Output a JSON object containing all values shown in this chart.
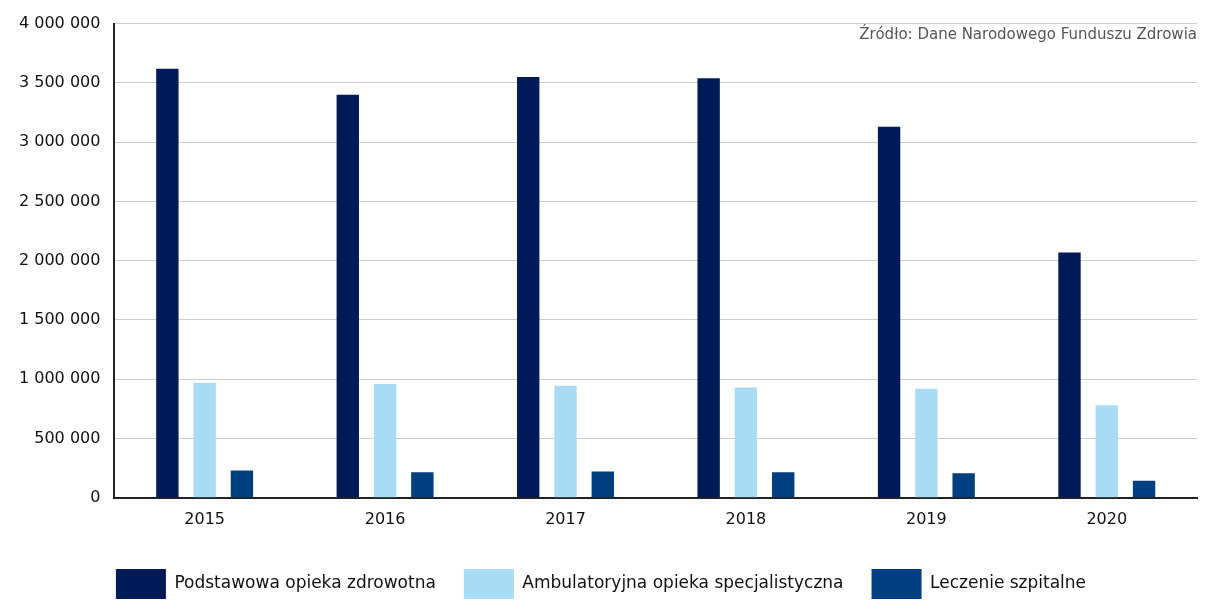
{
  "chart_data": {
    "type": "bar",
    "categories": [
      "2015",
      "2016",
      "2017",
      "2018",
      "2019",
      "2020"
    ],
    "series": [
      {
        "name": "Podstawowa opieka zdrowotna",
        "color": "#001a57",
        "values": [
          3620000,
          3400000,
          3550000,
          3540000,
          3130000,
          2070000
        ]
      },
      {
        "name": "Ambulatoryjna opieka specjalistyczna",
        "color": "#a8dcf5",
        "values": [
          970000,
          960000,
          945000,
          930000,
          920000,
          780000
        ]
      },
      {
        "name": "Leczenie szpitalne",
        "color": "#003f7f",
        "values": [
          230000,
          215000,
          222000,
          215000,
          207000,
          143000
        ]
      }
    ],
    "ylim": [
      0,
      4000000
    ],
    "yticks": [
      {
        "value": 0,
        "label": "0"
      },
      {
        "value": 500000,
        "label": "500 000"
      },
      {
        "value": 1000000,
        "label": "1 000 000"
      },
      {
        "value": 1500000,
        "label": "1 500 000"
      },
      {
        "value": 2000000,
        "label": "2 000 000"
      },
      {
        "value": 2500000,
        "label": "2 500 000"
      },
      {
        "value": 3000000,
        "label": "3 000 000"
      },
      {
        "value": 3500000,
        "label": "3 500 000"
      },
      {
        "value": 4000000,
        "label": "4 000 000"
      }
    ],
    "grid": "y",
    "legend": "bottom",
    "annotations": [
      "Źródło: Dane Narodowego Funduszu Zdrowia"
    ]
  }
}
